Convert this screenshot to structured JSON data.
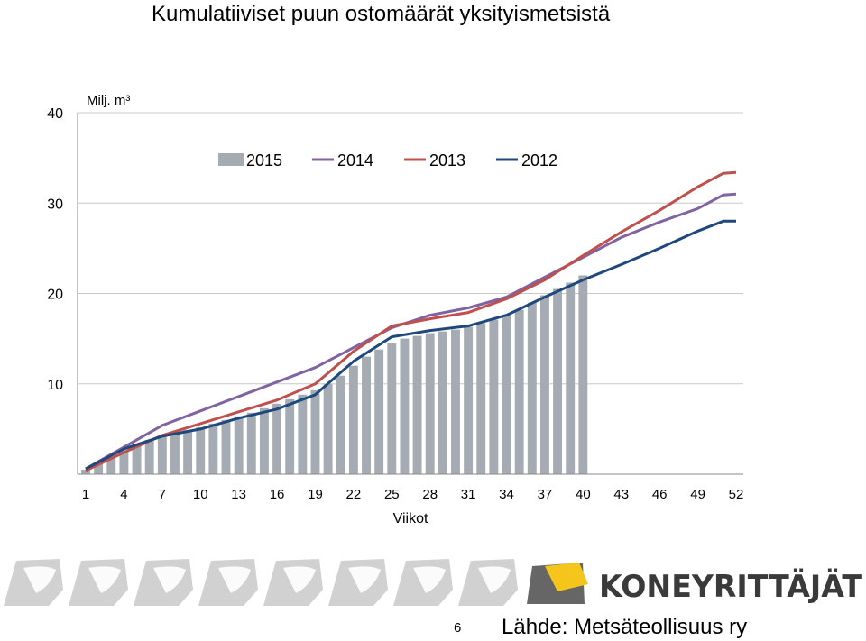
{
  "title": "Kumulatiiviset puun ostomäärät yksityismetsistä",
  "page_number": "6",
  "source": "Lähde: Metsäteollisuus ry",
  "brand": {
    "name": "KONEYRITTÄJÄT",
    "text_color": "#3a3a3a",
    "accent_color": "#f6c51c",
    "gear_color": "#c9c9c9"
  },
  "chart_data": {
    "type": "bar+line",
    "ylabel": "Milj. m³",
    "xlabel": "Viikot",
    "ylim": [
      0,
      40
    ],
    "yticks": [
      10,
      20,
      30,
      40
    ],
    "xticks": [
      1,
      4,
      7,
      10,
      13,
      16,
      19,
      22,
      25,
      28,
      31,
      34,
      37,
      40,
      43,
      46,
      49,
      52
    ],
    "xlim": [
      1,
      52
    ],
    "grid": true,
    "legend_position": "top",
    "bars": {
      "name": "2015",
      "color": "#a4abb2",
      "weeks": [
        1,
        2,
        3,
        4,
        5,
        6,
        7,
        8,
        9,
        10,
        11,
        12,
        13,
        14,
        15,
        16,
        17,
        18,
        19,
        20,
        21,
        22,
        23,
        24,
        25,
        26,
        27,
        28,
        29,
        30,
        31,
        32,
        33,
        34,
        35,
        36,
        37,
        38,
        39,
        40
      ],
      "values": [
        0.5,
        1.2,
        1.9,
        2.6,
        3.3,
        3.8,
        4.3,
        4.6,
        4.9,
        5.2,
        5.6,
        6.0,
        6.4,
        6.8,
        7.3,
        7.8,
        8.3,
        8.8,
        9.3,
        10.0,
        10.9,
        12.0,
        13.0,
        13.8,
        14.5,
        15.0,
        15.3,
        15.6,
        15.8,
        16.0,
        16.3,
        16.7,
        17.1,
        17.6,
        18.2,
        19.0,
        19.8,
        20.5,
        21.2,
        22.0
      ]
    },
    "series": [
      {
        "name": "2014",
        "color": "#8064a2",
        "x": [
          1,
          4,
          7,
          10,
          13,
          16,
          19,
          22,
          25,
          28,
          31,
          34,
          37,
          40,
          43,
          46,
          49,
          51,
          52
        ],
        "values": [
          0.6,
          3.0,
          5.4,
          7.0,
          8.6,
          10.2,
          11.8,
          14.0,
          16.2,
          17.6,
          18.4,
          19.6,
          21.8,
          24.0,
          26.2,
          27.9,
          29.4,
          30.9,
          31.0
        ]
      },
      {
        "name": "2013",
        "color": "#c0504d",
        "x": [
          1,
          4,
          7,
          10,
          13,
          16,
          19,
          22,
          25,
          28,
          31,
          34,
          37,
          40,
          43,
          46,
          49,
          51,
          52
        ],
        "values": [
          0.4,
          2.4,
          4.3,
          5.6,
          6.9,
          8.2,
          10.0,
          13.6,
          16.4,
          17.2,
          17.9,
          19.4,
          21.5,
          24.2,
          26.8,
          29.2,
          31.8,
          33.3,
          33.4
        ]
      },
      {
        "name": "2012",
        "color": "#1f497d",
        "x": [
          1,
          4,
          7,
          10,
          13,
          16,
          19,
          22,
          25,
          28,
          31,
          34,
          37,
          40,
          43,
          46,
          49,
          51,
          52
        ],
        "values": [
          0.6,
          2.8,
          4.2,
          5.0,
          6.2,
          7.2,
          8.8,
          12.5,
          15.2,
          15.9,
          16.4,
          17.6,
          19.6,
          21.5,
          23.2,
          25.0,
          26.9,
          28.0,
          28.0
        ]
      }
    ]
  }
}
